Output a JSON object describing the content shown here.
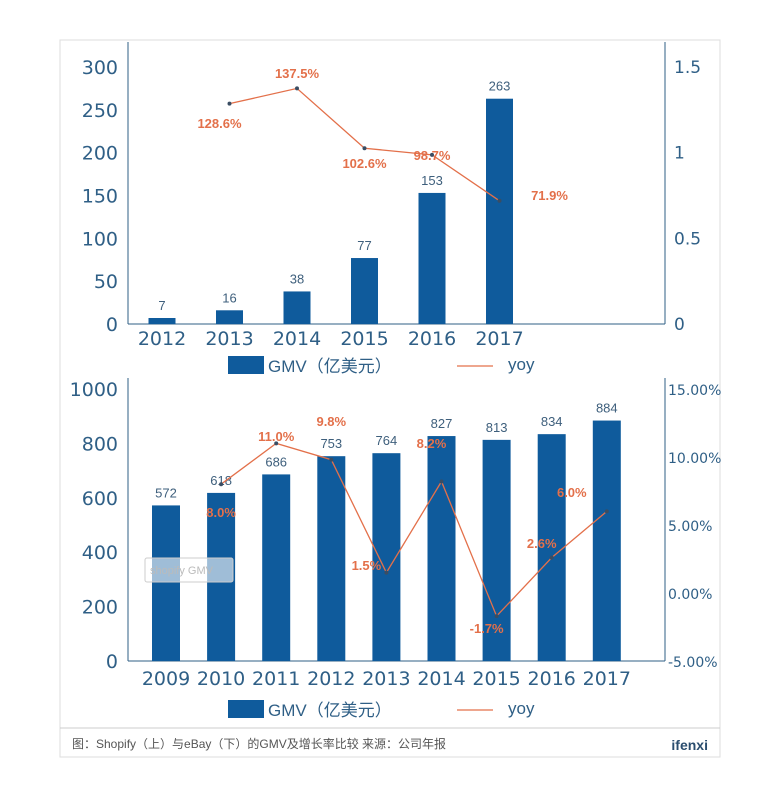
{
  "chart_data": [
    {
      "type": "bar",
      "title": "Shopify",
      "categories": [
        "2012",
        "2013",
        "2014",
        "2015",
        "2016",
        "2017"
      ],
      "series": [
        {
          "name": "GMV（亿美元）",
          "type": "bar",
          "axis": "left",
          "values": [
            7,
            16,
            38,
            77,
            153,
            263
          ],
          "labels": [
            "7",
            "16",
            "38",
            "77",
            "153",
            "263"
          ]
        },
        {
          "name": "yoy",
          "type": "line",
          "axis": "right",
          "values": [
            null,
            1.286,
            1.375,
            1.026,
            0.987,
            0.719
          ],
          "labels": [
            null,
            "128.6%",
            "137.5%",
            "102.6%",
            "98.7%",
            "71.9%"
          ]
        }
      ],
      "ylim": [
        0,
        300
      ],
      "yticks": [
        "0",
        "50",
        "100",
        "150",
        "200",
        "250",
        "300"
      ],
      "y2lim": [
        0,
        1.5
      ],
      "y2ticks": [
        "0",
        "0.5",
        "1",
        "1.5"
      ],
      "legend": "bottom"
    },
    {
      "type": "bar",
      "title": "eBay",
      "categories": [
        "2009",
        "2010",
        "2011",
        "2012",
        "2013",
        "2014",
        "2015",
        "2016",
        "2017"
      ],
      "series": [
        {
          "name": "GMV（亿美元）",
          "type": "bar",
          "axis": "left",
          "values": [
            572,
            618,
            686,
            753,
            764,
            827,
            813,
            834,
            884
          ],
          "labels": [
            "572",
            "618",
            "686",
            "753",
            "764",
            "827",
            "813",
            "834",
            "884"
          ]
        },
        {
          "name": "yoy",
          "type": "line",
          "axis": "right",
          "values": [
            null,
            8.0,
            11.0,
            9.8,
            1.5,
            8.2,
            -1.7,
            2.6,
            6.0
          ],
          "labels": [
            null,
            "8.0%",
            "11.0%",
            "9.8%",
            "1.5%",
            "8.2%",
            "-1.7%",
            "2.6%",
            "6.0%"
          ]
        }
      ],
      "ylim": [
        0,
        1000
      ],
      "yticks": [
        "0",
        "200",
        "400",
        "600",
        "800",
        "1000"
      ],
      "y2lim": [
        -5,
        15
      ],
      "y2ticks": [
        "-5.00%",
        "0.00%",
        "5.00%",
        "10.00%",
        "15.00%"
      ],
      "legend": "bottom",
      "watermark": "shopify GMV"
    }
  ],
  "colors": {
    "bar": "#0f5b9c",
    "line": "#e3704a",
    "axis": "#2f5f86"
  },
  "caption": "图：Shopify（上）与eBay（下）的GMV及增长率比较 来源：公司年报",
  "brand": "ifenxi"
}
